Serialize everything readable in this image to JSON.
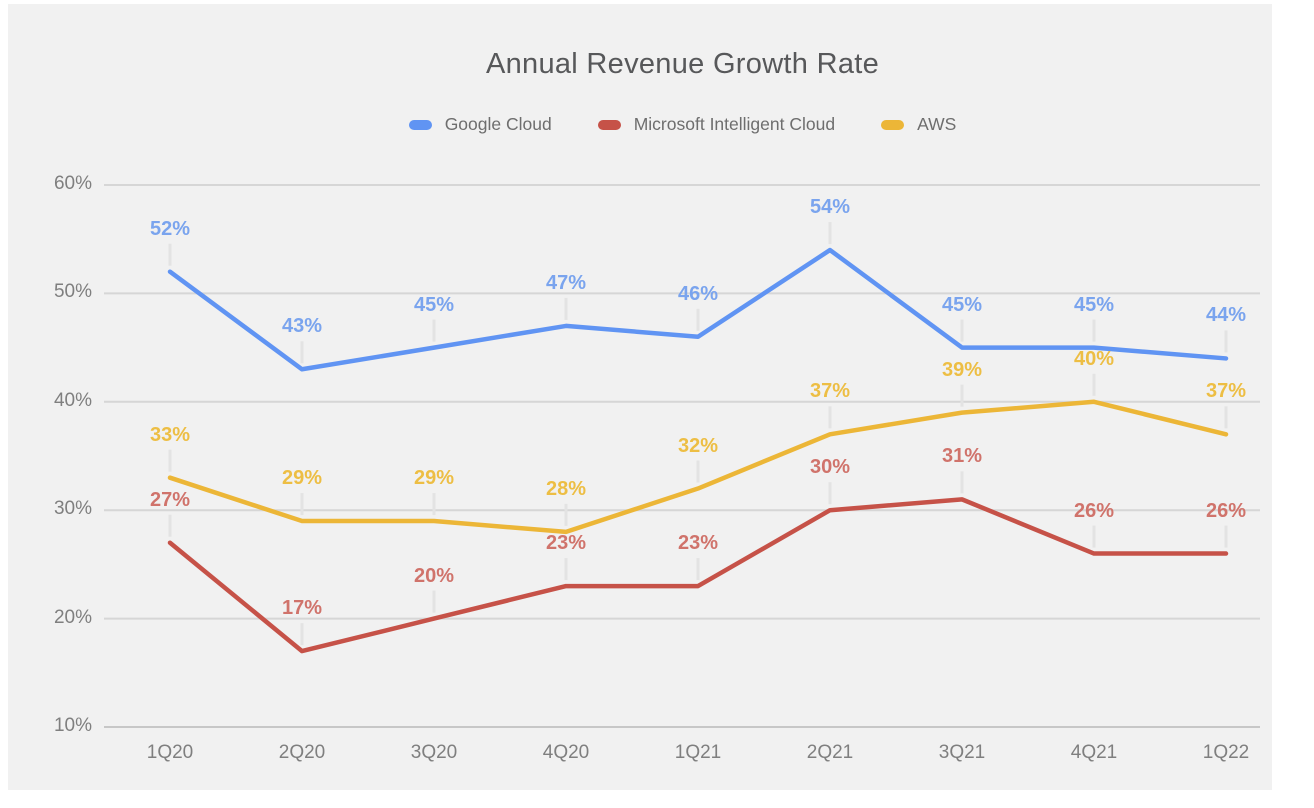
{
  "title": "Annual Revenue Growth Rate",
  "legend": {
    "items": [
      {
        "label": "Google Cloud",
        "color": "#6094f3"
      },
      {
        "label": "Microsoft Intelligent Cloud",
        "color": "#c65248"
      },
      {
        "label": "AWS",
        "color": "#ecb637"
      }
    ]
  },
  "chart_data": {
    "type": "line",
    "title": "Annual Revenue Growth Rate",
    "xlabel": "",
    "ylabel": "",
    "categories": [
      "1Q20",
      "2Q20",
      "3Q20",
      "4Q20",
      "1Q21",
      "2Q21",
      "3Q21",
      "4Q21",
      "1Q22"
    ],
    "series": [
      {
        "name": "Google Cloud",
        "color": "#6094f3",
        "label_color": "#7aa4ee",
        "values": [
          52,
          43,
          45,
          47,
          46,
          54,
          45,
          45,
          44
        ]
      },
      {
        "name": "Microsoft Intelligent Cloud",
        "color": "#c65248",
        "label_color": "#d0736b",
        "values": [
          27,
          17,
          20,
          23,
          23,
          30,
          31,
          26,
          26
        ]
      },
      {
        "name": "AWS",
        "color": "#ecb637",
        "label_color": "#edbe44",
        "values": [
          33,
          29,
          29,
          28,
          32,
          37,
          39,
          40,
          37
        ]
      }
    ],
    "y_ticks": [
      "10%",
      "20%",
      "30%",
      "40%",
      "50%",
      "60%"
    ],
    "ylim": [
      10,
      60
    ],
    "grid": true,
    "legend_position": "top",
    "data_labels": true,
    "label_format": "{value}%"
  },
  "colors": {
    "page_bg": "#ffffff",
    "panel_bg": "#f1f1f1",
    "gridline": "#d6d6d6",
    "axis_line": "#c7c7c7",
    "axis_text": "#7f7f7f",
    "title_text": "#57585a",
    "legend_text": "#6e6e6e",
    "connector": "#e3e3e3"
  }
}
